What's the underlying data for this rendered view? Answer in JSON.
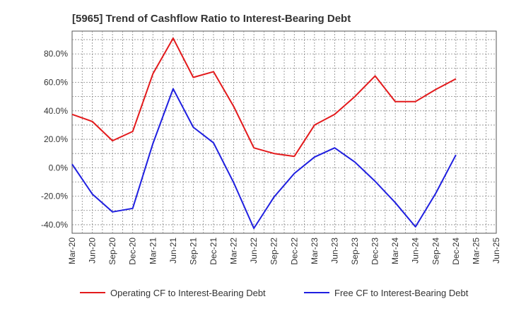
{
  "chart_data": {
    "type": "line",
    "title": "[5965]  Trend of Cashflow Ratio to Interest-Bearing Debt",
    "xlabel": "",
    "ylabel": "",
    "categories": [
      "Mar-20",
      "Jun-20",
      "Sep-20",
      "Dec-20",
      "Mar-21",
      "Jun-21",
      "Sep-21",
      "Dec-21",
      "Mar-22",
      "Jun-22",
      "Sep-22",
      "Dec-22",
      "Mar-23",
      "Jun-23",
      "Sep-23",
      "Dec-23",
      "Mar-24",
      "Jun-24",
      "Sep-24",
      "Dec-24",
      "Mar-25",
      "Jun-25"
    ],
    "ylim": [
      -46,
      96
    ],
    "yticks": [
      -40,
      -20,
      0,
      20,
      40,
      60,
      80
    ],
    "ytick_labels": [
      "-40.0%",
      "-20.0%",
      "0.0%",
      "20.0%",
      "40.0%",
      "60.0%",
      "80.0%"
    ],
    "grid": true,
    "legend_position": "bottom",
    "series": [
      {
        "name": "Operating CF to Interest-Bearing Debt",
        "color": "#e31a1c",
        "values": [
          37.5,
          32.5,
          19.0,
          25.5,
          66.0,
          91.0,
          63.5,
          67.5,
          43.0,
          14.0,
          10.0,
          8.0,
          30.0,
          37.5,
          50.0,
          64.5,
          46.5,
          46.5,
          55.0,
          62.5,
          null,
          null
        ]
      },
      {
        "name": "Free CF to Interest-Bearing Debt",
        "color": "#1f1fe0",
        "values": [
          2.5,
          -18.5,
          -31.0,
          -28.5,
          17.0,
          55.5,
          28.5,
          17.5,
          -10.5,
          -42.5,
          -20.5,
          -4.0,
          7.5,
          14.0,
          4.0,
          -9.5,
          -24.5,
          -41.5,
          -18.0,
          9.0,
          null,
          null
        ]
      }
    ]
  }
}
